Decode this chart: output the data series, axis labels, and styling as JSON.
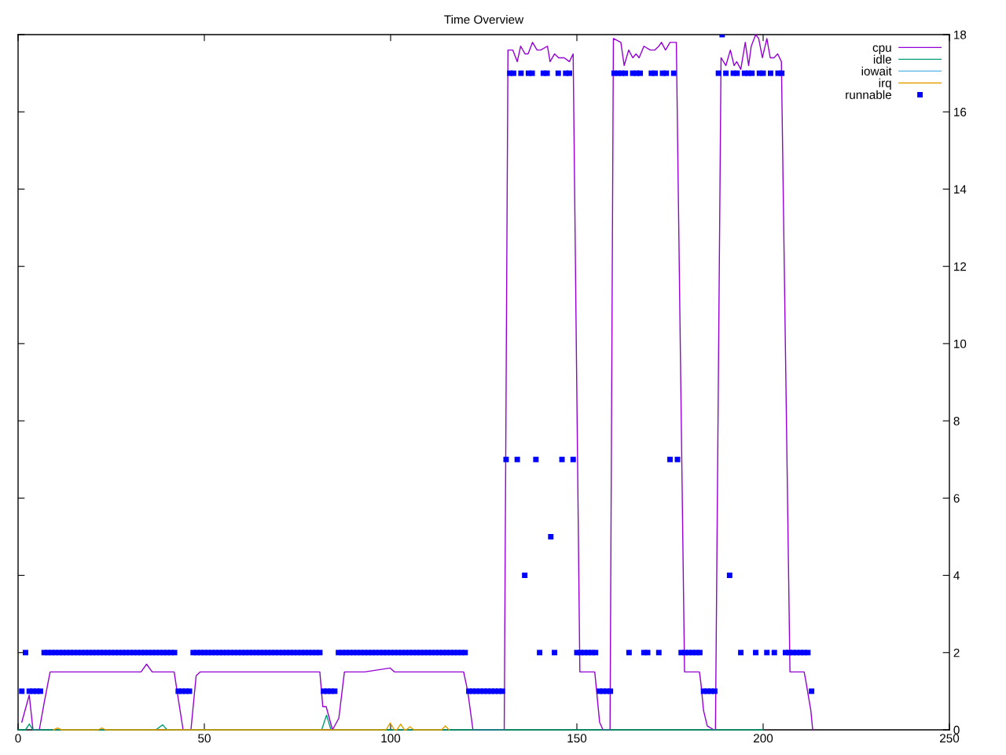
{
  "chart_data": {
    "type": "line",
    "title": "Time Overview",
    "xlim": [
      0,
      250
    ],
    "xticks": [
      0,
      50,
      100,
      150,
      200,
      250
    ],
    "ylim": [
      0,
      18
    ],
    "yticks": [
      0,
      2,
      4,
      6,
      8,
      10,
      12,
      14,
      16,
      18
    ],
    "grid": false,
    "legend": "top right",
    "line_style": "solid",
    "series": [
      {
        "name": "cpu",
        "color": "#9400d3",
        "x": [
          1,
          3,
          4,
          5.7,
          7,
          8.6,
          15,
          20,
          25,
          30,
          33,
          34.5,
          36,
          41.9,
          43,
          44.3,
          46.4,
          47.8,
          48.9,
          55,
          60,
          65,
          70,
          75,
          81,
          81.8,
          82.7,
          84.4,
          86.1,
          87.6,
          93,
          99.9,
          101,
          105,
          110,
          119.6,
          120.7,
          122.1,
          130.5,
          131.5,
          132.8,
          134,
          134.9,
          136.1,
          136.9,
          138.1,
          139.3,
          140.3,
          142.1,
          142.8,
          144,
          145.1,
          146.6,
          148,
          149,
          150.8,
          154.8,
          156.1,
          157,
          158.9,
          159.8,
          161.8,
          162.7,
          163.9,
          165,
          165.9,
          166.7,
          168,
          169.7,
          170.9,
          172,
          172.7,
          173.8,
          175,
          176.7,
          178.9,
          182.9,
          183.3,
          184,
          185,
          186.8,
          187.2,
          188.7,
          190,
          191.2,
          192.2,
          192.9,
          194,
          195.2,
          196.1,
          196.8,
          198,
          198.8,
          199.8,
          201,
          201.9,
          202.9,
          203.9,
          204.9,
          207.2,
          211,
          211.4,
          212.1,
          212.8,
          213.3
        ],
        "values": [
          0.2,
          0.9,
          0.0,
          0,
          0.7,
          1.5,
          1.5,
          1.5,
          1.5,
          1.5,
          1.5,
          1.7,
          1.5,
          1.5,
          0.8,
          0,
          0,
          1.4,
          1.5,
          1.5,
          1.5,
          1.5,
          1.5,
          1.5,
          1.5,
          0.6,
          0.6,
          0,
          0.3,
          1.5,
          1.5,
          1.6,
          1.5,
          1.5,
          1.5,
          1.5,
          1.0,
          0,
          0,
          17.6,
          17.6,
          17.3,
          17.7,
          17.5,
          17.5,
          17.8,
          17.6,
          17.6,
          17.7,
          17.3,
          17.5,
          17.4,
          17.4,
          17.3,
          17.5,
          1.5,
          1.5,
          0.2,
          0,
          0,
          17.9,
          17.8,
          17.2,
          17.6,
          17.4,
          17.5,
          17.4,
          17.7,
          17.6,
          17.6,
          17.7,
          17.8,
          17.6,
          17.8,
          17.8,
          1.5,
          1.5,
          1.2,
          0.5,
          0.1,
          0,
          0,
          17.4,
          17.2,
          17.6,
          17.2,
          17.3,
          17.1,
          17.8,
          17.2,
          17.7,
          18.0,
          17.9,
          17.4,
          17.9,
          17.4,
          17.4,
          17.5,
          17.3,
          1.5,
          1.5,
          1.3,
          0.9,
          0.5,
          0
        ]
      },
      {
        "name": "idle",
        "color": "#009e73",
        "x": [
          0,
          2,
          3,
          4,
          37,
          38.8,
          40,
          81.5,
          82.8,
          84,
          200
        ],
        "values": [
          0,
          0,
          0.15,
          0,
          0,
          0.13,
          0,
          0,
          0.38,
          0,
          0
        ]
      },
      {
        "name": "iowait",
        "color": "#56b4e9"
      },
      {
        "name": "irq",
        "color": "#e69f00",
        "x": [
          9.5,
          10.6,
          11.7,
          21.5,
          22.5,
          23.5,
          98.8,
          99.9,
          101,
          101.7,
          102.7,
          103.7,
          104.2,
          105.2,
          106.2,
          113.7,
          114.7,
          115.7
        ],
        "values": [
          0,
          0.05,
          0,
          0,
          0.05,
          0,
          0,
          0.18,
          0,
          0,
          0.15,
          0,
          0,
          0.08,
          0,
          0,
          0.1,
          0
        ]
      },
      {
        "name": "runnable",
        "color": "#0000ff",
        "type": "scatter",
        "marker": "square",
        "x": [
          1,
          2,
          3,
          4,
          5,
          6,
          7,
          8,
          9,
          10,
          11,
          12,
          13,
          14,
          15,
          16,
          17,
          18,
          19,
          20,
          21,
          22,
          23,
          24,
          25,
          26,
          27,
          28,
          29,
          30,
          31,
          32,
          33,
          34,
          35,
          36,
          37,
          38,
          39,
          40,
          41,
          42,
          43,
          44,
          45,
          46,
          47,
          48,
          49,
          50,
          51,
          52,
          53,
          54,
          55,
          56,
          57,
          58,
          59,
          60,
          61,
          62,
          63,
          64,
          65,
          66,
          67,
          68,
          69,
          70,
          71,
          72,
          73,
          74,
          75,
          76,
          77,
          78,
          79,
          80,
          81,
          82,
          83,
          84,
          85,
          86,
          87,
          88,
          89,
          90,
          91,
          92,
          93,
          94,
          95,
          96,
          97,
          98,
          99,
          100,
          101,
          102,
          103,
          104,
          105,
          106,
          107,
          108,
          109,
          110,
          111,
          112,
          113,
          114,
          115,
          116,
          117,
          118,
          119,
          120,
          121,
          122,
          123,
          124,
          125,
          126,
          127,
          128,
          129,
          130,
          131,
          132,
          133,
          134,
          135,
          136,
          137,
          138,
          139,
          140,
          141,
          142,
          143,
          144,
          145,
          146,
          147,
          148,
          149,
          150,
          151,
          152,
          153,
          154,
          155,
          156,
          157,
          158,
          159,
          160,
          161,
          162,
          163,
          164,
          165,
          166,
          167,
          168,
          169,
          170,
          171,
          172,
          173,
          174,
          175,
          176,
          177,
          178,
          179,
          180,
          181,
          182,
          183,
          184,
          185,
          186,
          187,
          188,
          189,
          190,
          191,
          192,
          193,
          194,
          195,
          196,
          197,
          198,
          199,
          200,
          201,
          202,
          203,
          204,
          205,
          206,
          207,
          208,
          209,
          210,
          211,
          212,
          213
        ],
        "values": [
          1,
          2,
          1,
          1,
          1,
          1,
          2,
          2,
          2,
          2,
          2,
          2,
          2,
          2,
          2,
          2,
          2,
          2,
          2,
          2,
          2,
          2,
          2,
          2,
          2,
          2,
          2,
          2,
          2,
          2,
          2,
          2,
          2,
          2,
          2,
          2,
          2,
          2,
          2,
          2,
          2,
          2,
          1,
          1,
          1,
          1,
          2,
          2,
          2,
          2,
          2,
          2,
          2,
          2,
          2,
          2,
          2,
          2,
          2,
          2,
          2,
          2,
          2,
          2,
          2,
          2,
          2,
          2,
          2,
          2,
          2,
          2,
          2,
          2,
          2,
          2,
          2,
          2,
          2,
          2,
          2,
          1,
          1,
          1,
          1,
          2,
          2,
          2,
          2,
          2,
          2,
          2,
          2,
          2,
          2,
          2,
          2,
          2,
          2,
          2,
          2,
          2,
          2,
          2,
          2,
          2,
          2,
          2,
          2,
          2,
          2,
          2,
          2,
          2,
          2,
          2,
          2,
          2,
          2,
          2,
          1,
          1,
          1,
          1,
          1,
          1,
          1,
          1,
          1,
          1,
          7,
          17,
          17,
          7,
          17,
          4,
          17,
          17,
          7,
          2,
          17,
          17,
          5,
          2,
          17,
          7,
          17,
          17,
          7,
          2,
          2,
          2,
          2,
          2,
          2,
          1,
          1,
          1,
          1,
          17,
          17,
          17,
          17,
          2,
          17,
          17,
          17,
          2,
          2,
          17,
          17,
          2,
          17,
          17,
          7,
          17,
          7,
          2,
          2,
          2,
          2,
          2,
          2,
          1,
          1,
          1,
          1,
          17,
          18,
          17,
          4,
          17,
          17,
          2,
          17,
          17,
          17,
          2,
          17,
          17,
          2,
          17,
          2,
          17,
          17,
          2,
          2,
          2,
          2,
          2,
          2,
          2,
          1
        ]
      }
    ]
  }
}
